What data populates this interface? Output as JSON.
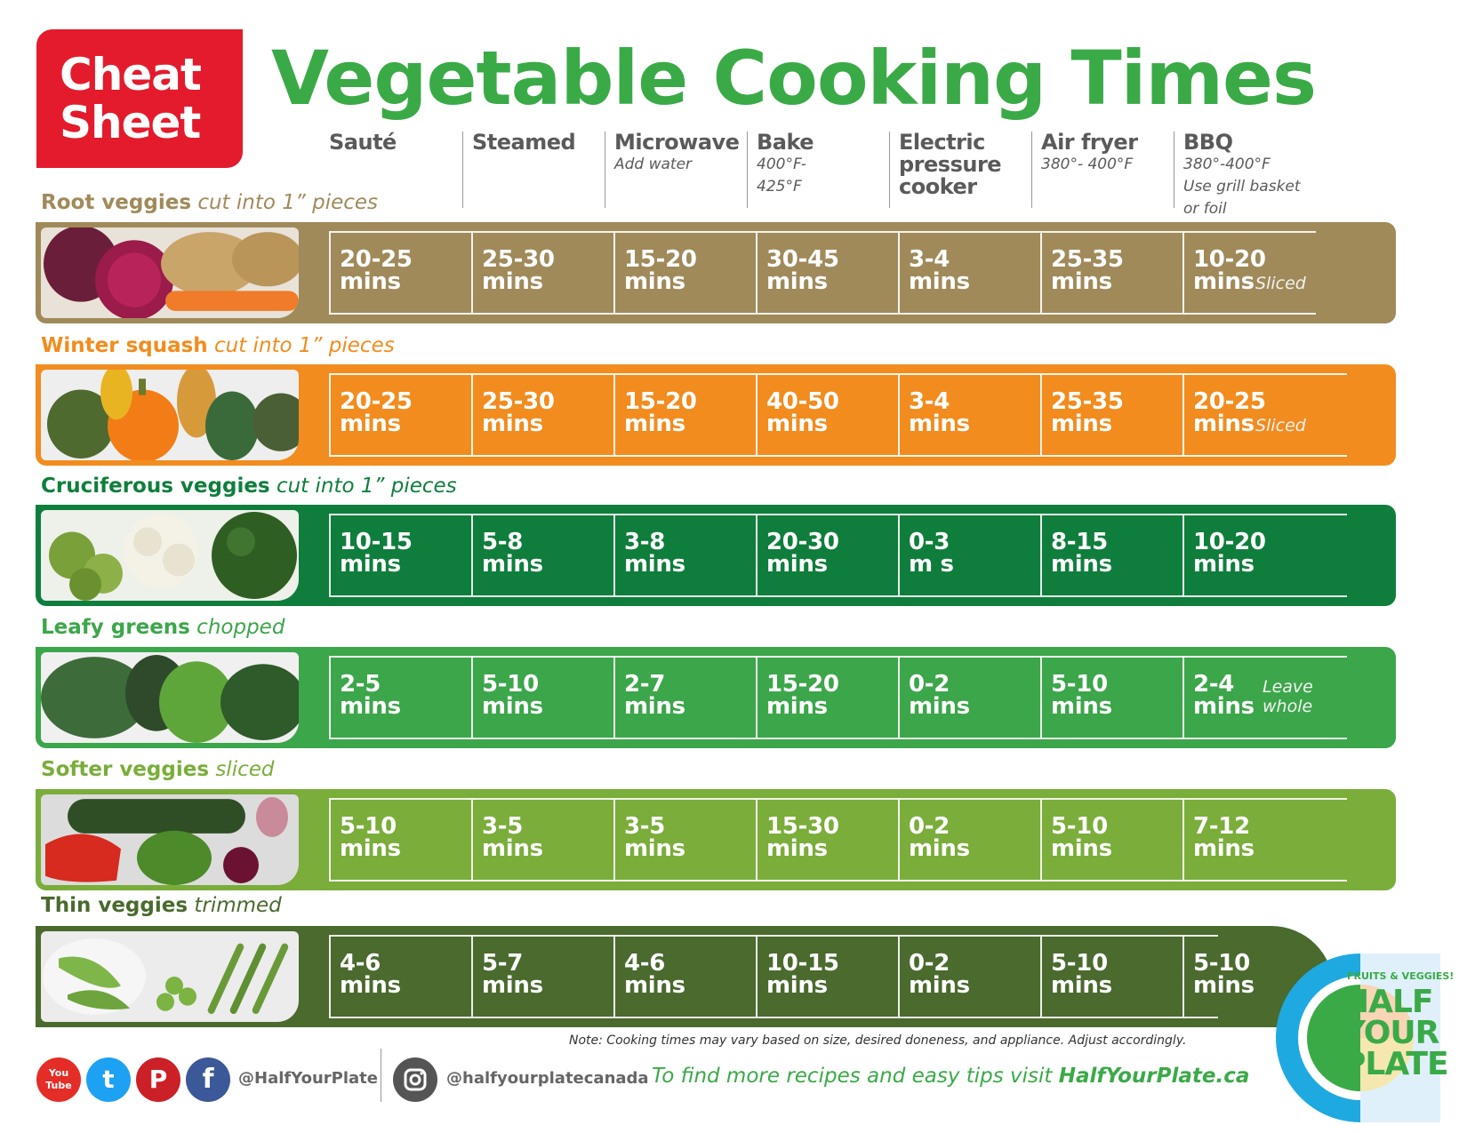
{
  "badge": {
    "line1": "Cheat",
    "line2": "Sheet"
  },
  "title": "Vegetable Cooking Times",
  "columns": [
    {
      "title": "Sauté",
      "note": ""
    },
    {
      "title": "Steamed",
      "note": ""
    },
    {
      "title": "Microwave",
      "note": "Add water"
    },
    {
      "title": "Bake",
      "note": "400°F-\n425°F"
    },
    {
      "title": "Electric\npressure\ncooker",
      "note": ""
    },
    {
      "title": "Air fryer",
      "note": "380°- 400°F"
    },
    {
      "title": "BBQ",
      "note": "380°-400°F\nUse grill basket or foil"
    }
  ],
  "categories": [
    {
      "name": "Root veggies",
      "desc": "cut into 1” pieces",
      "label_color": "#a08a5a",
      "band_color": "#a08a5a",
      "times": [
        "20-25\nmins",
        "25-30\nmins",
        "15-20\nmins",
        "30-45\nmins",
        "3-4\nmins",
        "25-35\nmins",
        "10-20\nmins"
      ],
      "note": "Sliced"
    },
    {
      "name": "Winter squash",
      "desc": "cut into 1” pieces",
      "label_color": "#f28c1e",
      "band_color": "#f28c1e",
      "times": [
        "20-25\nmins",
        "25-30\nmins",
        "15-20\nmins",
        "40-50\nmins",
        "3-4\nmins",
        "25-35\nmins",
        "20-25\nmins"
      ],
      "note": "Sliced"
    },
    {
      "name": "Cruciferous veggies",
      "desc": "cut into 1” pieces",
      "label_color": "#0f7e3c",
      "band_color": "#0f7e3c",
      "times": [
        "10-15\nmins",
        "5-8\nmins",
        "3-8\nmins",
        "20-30\nmins",
        "0-3\nm s",
        "8-15\nmins",
        "10-20\nmins"
      ],
      "note": ""
    },
    {
      "name": "Leafy greens",
      "desc": "chopped",
      "label_color": "#3ca64a",
      "band_color": "#3ca64a",
      "times": [
        "2-5\nmins",
        "5-10\nmins",
        "2-7\nmins",
        "15-20\nmins",
        "0-2\nmins",
        "5-10\nmins",
        "2-4\nmins"
      ],
      "note": "Leave\nwhole"
    },
    {
      "name": "Softer veggies",
      "desc": "sliced",
      "label_color": "#7aad3a",
      "band_color": "#7aad3a",
      "times": [
        "5-10\nmins",
        "3-5\nmins",
        "3-5\nmins",
        "15-30\nmins",
        "0-2\nmins",
        "5-10\nmins",
        "7-12\nmins"
      ],
      "note": ""
    },
    {
      "name": "Thin veggies",
      "desc": "trimmed",
      "label_color": "#4a6a2e",
      "band_color": "#4a6a2e",
      "times": [
        "4-6\nmins",
        "5-7\nmins",
        "4-6\nmins",
        "10-15\nmins",
        "0-2\nmins",
        "5-10\nmins",
        "5-10\nmins"
      ],
      "note": ""
    }
  ],
  "footnote": "Note: Cooking times may vary based on size, desired doneness, and appliance. Adjust accordingly.",
  "social": {
    "youtube": "You\nTube",
    "twitter": "t",
    "pinterest": "P",
    "facebook": "f",
    "handle1": "@HalfYourPlate",
    "handle2": "@halfyourplatecanada"
  },
  "tagline": {
    "text": "To find more recipes and easy tips visit ",
    "link": "HalfYourPlate.ca"
  },
  "logo": {
    "small": "FRUITS & VEGGIES!",
    "line1": "HALF",
    "line2": "YOUR",
    "line3": "PLATE"
  },
  "colors": {
    "badge": "#e31b2c",
    "title": "#3aaa47",
    "twitter": "#1da1f2",
    "facebook": "#3b5998",
    "pinterest": "#cb2027",
    "youtube": "#e52d27"
  }
}
